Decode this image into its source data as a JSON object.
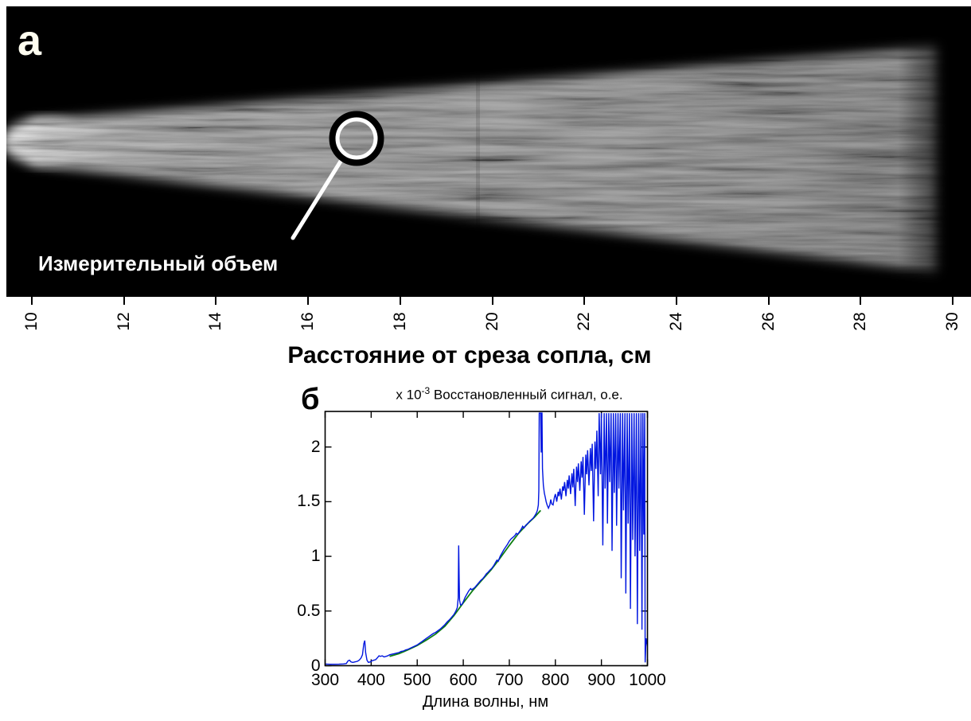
{
  "figure": {
    "panel_a": {
      "label": "a",
      "annotation": "Измерительный объем",
      "axis": {
        "ticks": [
          10,
          12,
          14,
          16,
          18,
          20,
          22,
          24,
          26,
          28,
          30
        ],
        "label": "Расстояние от среза сопла, см"
      }
    },
    "panel_b": {
      "label": "б",
      "title_exp_prefix": "x 10",
      "title_exp_sup": "-3",
      "title_text": " Восстановленный сигнал, о.е.",
      "xlabel": "Длина волны, нм",
      "x_tick_labels": [
        "300",
        "400",
        "500",
        "600",
        "700",
        "800",
        "900",
        "1000"
      ],
      "y_tick_labels": [
        "0",
        "0.5",
        "1",
        "1.5",
        "2"
      ]
    }
  },
  "colors": {
    "curve_blue": "#0016e0",
    "fit_green": "#0d7d12",
    "panel_background": "#000000",
    "annotation_white": "#ffffff"
  },
  "chart_data": {
    "type": "line",
    "title": "x 10^-3  Восстановленный сигнал, о.е.",
    "xlabel": "Длина волны, нм",
    "ylabel": "",
    "xlim": [
      300,
      1000
    ],
    "ylim": [
      0,
      2.33
    ],
    "y_units": "1e-3, отн. ед.",
    "grid": false,
    "legend": "none",
    "x_ticks": [
      300,
      400,
      500,
      600,
      700,
      800,
      900,
      1000
    ],
    "y_ticks": [
      0,
      0.5,
      1,
      1.5,
      2
    ],
    "series": [
      {
        "name": "smooth-fit",
        "color": "#0d7d12",
        "points": [
          [
            440,
            0.085
          ],
          [
            460,
            0.11
          ],
          [
            480,
            0.145
          ],
          [
            500,
            0.185
          ],
          [
            520,
            0.235
          ],
          [
            540,
            0.29
          ],
          [
            560,
            0.36
          ],
          [
            580,
            0.46
          ],
          [
            600,
            0.575
          ],
          [
            620,
            0.685
          ],
          [
            640,
            0.78
          ],
          [
            660,
            0.875
          ],
          [
            680,
            0.985
          ],
          [
            700,
            1.1
          ],
          [
            720,
            1.21
          ],
          [
            740,
            1.3
          ],
          [
            755,
            1.36
          ],
          [
            768,
            1.42
          ]
        ]
      },
      {
        "name": "restored-signal",
        "color": "#0016e0",
        "points": [
          [
            300,
            0.015
          ],
          [
            310,
            0.013
          ],
          [
            320,
            0.013
          ],
          [
            330,
            0.014
          ],
          [
            340,
            0.016
          ],
          [
            346,
            0.02
          ],
          [
            350,
            0.045
          ],
          [
            353,
            0.05
          ],
          [
            356,
            0.035
          ],
          [
            360,
            0.03
          ],
          [
            365,
            0.035
          ],
          [
            370,
            0.04
          ],
          [
            374,
            0.05
          ],
          [
            378,
            0.07
          ],
          [
            381,
            0.1
          ],
          [
            384,
            0.2
          ],
          [
            386,
            0.23
          ],
          [
            388,
            0.12
          ],
          [
            391,
            0.05
          ],
          [
            394,
            0.03
          ],
          [
            398,
            0.035
          ],
          [
            402,
            0.045
          ],
          [
            406,
            0.05
          ],
          [
            410,
            0.055
          ],
          [
            414,
            0.075
          ],
          [
            417,
            0.09
          ],
          [
            420,
            0.085
          ],
          [
            424,
            0.09
          ],
          [
            428,
            0.08
          ],
          [
            432,
            0.085
          ],
          [
            436,
            0.09
          ],
          [
            440,
            0.1
          ],
          [
            445,
            0.105
          ],
          [
            450,
            0.11
          ],
          [
            455,
            0.115
          ],
          [
            460,
            0.12
          ],
          [
            465,
            0.13
          ],
          [
            470,
            0.135
          ],
          [
            475,
            0.145
          ],
          [
            480,
            0.15
          ],
          [
            485,
            0.16
          ],
          [
            490,
            0.17
          ],
          [
            495,
            0.18
          ],
          [
            500,
            0.19
          ],
          [
            505,
            0.205
          ],
          [
            510,
            0.22
          ],
          [
            515,
            0.235
          ],
          [
            520,
            0.25
          ],
          [
            525,
            0.265
          ],
          [
            530,
            0.28
          ],
          [
            535,
            0.295
          ],
          [
            540,
            0.305
          ],
          [
            545,
            0.32
          ],
          [
            550,
            0.335
          ],
          [
            555,
            0.355
          ],
          [
            560,
            0.375
          ],
          [
            565,
            0.4
          ],
          [
            570,
            0.42
          ],
          [
            575,
            0.445
          ],
          [
            580,
            0.47
          ],
          [
            584,
            0.5
          ],
          [
            587,
            0.53
          ],
          [
            589,
            0.62
          ],
          [
            590,
            1.1
          ],
          [
            591,
            0.8
          ],
          [
            592,
            0.6
          ],
          [
            594,
            0.555
          ],
          [
            597,
            0.56
          ],
          [
            600,
            0.585
          ],
          [
            604,
            0.625
          ],
          [
            608,
            0.655
          ],
          [
            612,
            0.685
          ],
          [
            616,
            0.705
          ],
          [
            618,
            0.695
          ],
          [
            622,
            0.705
          ],
          [
            626,
            0.72
          ],
          [
            630,
            0.74
          ],
          [
            634,
            0.76
          ],
          [
            638,
            0.78
          ],
          [
            642,
            0.795
          ],
          [
            646,
            0.815
          ],
          [
            650,
            0.84
          ],
          [
            654,
            0.855
          ],
          [
            658,
            0.875
          ],
          [
            662,
            0.89
          ],
          [
            666,
            0.915
          ],
          [
            670,
            0.945
          ],
          [
            673,
            0.965
          ],
          [
            676,
            0.955
          ],
          [
            680,
            1.0
          ],
          [
            684,
            1.03
          ],
          [
            688,
            1.06
          ],
          [
            692,
            1.085
          ],
          [
            696,
            1.11
          ],
          [
            700,
            1.14
          ],
          [
            704,
            1.16
          ],
          [
            708,
            1.175
          ],
          [
            712,
            1.19
          ],
          [
            715,
            1.21
          ],
          [
            718,
            1.2
          ],
          [
            722,
            1.225
          ],
          [
            726,
            1.25
          ],
          [
            729,
            1.275
          ],
          [
            732,
            1.26
          ],
          [
            736,
            1.285
          ],
          [
            740,
            1.3
          ],
          [
            744,
            1.32
          ],
          [
            748,
            1.335
          ],
          [
            752,
            1.35
          ],
          [
            755,
            1.37
          ],
          [
            758,
            1.39
          ],
          [
            761,
            1.42
          ],
          [
            763,
            1.47
          ],
          [
            764,
            1.6
          ],
          [
            765,
            2.31
          ],
          [
            768,
            2.31
          ],
          [
            769,
            1.95
          ],
          [
            770,
            2.31
          ],
          [
            771,
            2.31
          ],
          [
            772,
            1.8
          ],
          [
            774,
            1.65
          ],
          [
            776,
            1.58
          ],
          [
            778,
            1.54
          ],
          [
            780,
            1.5
          ],
          [
            782,
            1.47
          ],
          [
            785,
            1.44
          ],
          [
            788,
            1.47
          ],
          [
            790,
            1.52
          ],
          [
            792,
            1.48
          ],
          [
            795,
            1.47
          ],
          [
            798,
            1.54
          ],
          [
            800,
            1.57
          ],
          [
            803,
            1.5
          ],
          [
            806,
            1.59
          ],
          [
            808,
            1.55
          ],
          [
            810,
            1.62
          ],
          [
            813,
            1.52
          ],
          [
            816,
            1.64
          ],
          [
            818,
            1.6
          ],
          [
            820,
            1.68
          ],
          [
            823,
            1.55
          ],
          [
            826,
            1.7
          ],
          [
            828,
            1.62
          ],
          [
            830,
            1.74
          ],
          [
            833,
            1.57
          ],
          [
            836,
            1.76
          ],
          [
            838,
            1.63
          ],
          [
            840,
            1.8
          ],
          [
            843,
            1.46
          ],
          [
            846,
            1.82
          ],
          [
            848,
            1.68
          ],
          [
            850,
            1.85
          ],
          [
            853,
            1.6
          ],
          [
            856,
            1.87
          ],
          [
            858,
            1.72
          ],
          [
            860,
            1.91
          ],
          [
            863,
            1.38
          ],
          [
            866,
            1.93
          ],
          [
            868,
            1.75
          ],
          [
            870,
            1.97
          ],
          [
            873,
            1.65
          ],
          [
            876,
            1.99
          ],
          [
            878,
            1.78
          ],
          [
            880,
            2.03
          ],
          [
            883,
            1.32
          ],
          [
            886,
            2.05
          ],
          [
            888,
            1.8
          ],
          [
            890,
            2.15
          ],
          [
            893,
            1.55
          ],
          [
            895,
            2.31
          ],
          [
            898,
            1.75
          ],
          [
            900,
            2.31
          ],
          [
            903,
            1.1
          ],
          [
            906,
            2.31
          ],
          [
            908,
            1.62
          ],
          [
            911,
            2.31
          ],
          [
            913,
            1.3
          ],
          [
            916,
            2.31
          ],
          [
            918,
            1.68
          ],
          [
            921,
            2.31
          ],
          [
            923,
            1.05
          ],
          [
            926,
            2.31
          ],
          [
            928,
            1.58
          ],
          [
            931,
            2.31
          ],
          [
            933,
            1.28
          ],
          [
            936,
            2.31
          ],
          [
            938,
            1.62
          ],
          [
            941,
            2.31
          ],
          [
            943,
            0.8
          ],
          [
            946,
            2.31
          ],
          [
            948,
            1.42
          ],
          [
            951,
            2.31
          ],
          [
            953,
            0.66
          ],
          [
            956,
            2.31
          ],
          [
            958,
            1.3
          ],
          [
            961,
            2.31
          ],
          [
            963,
            0.52
          ],
          [
            966,
            2.31
          ],
          [
            968,
            1.15
          ],
          [
            971,
            2.31
          ],
          [
            973,
            1.0
          ],
          [
            976,
            2.31
          ],
          [
            978,
            0.38
          ],
          [
            981,
            2.31
          ],
          [
            983,
            1.05
          ],
          [
            986,
            2.31
          ],
          [
            988,
            0.33
          ],
          [
            990,
            2.31
          ],
          [
            992,
            1.2
          ],
          [
            994,
            2.31
          ],
          [
            995,
            0.03
          ],
          [
            997,
            0.25
          ],
          [
            1000,
            0.18
          ]
        ]
      }
    ]
  }
}
